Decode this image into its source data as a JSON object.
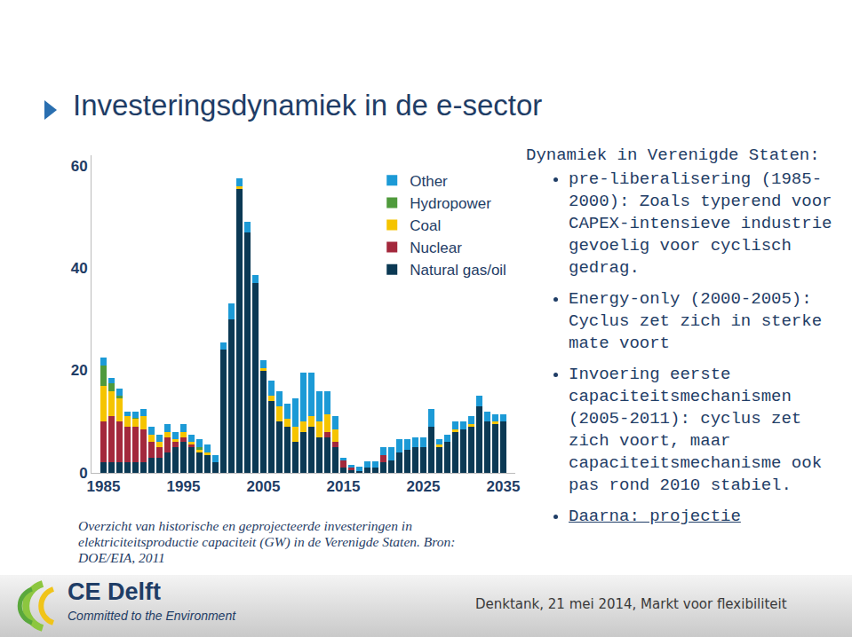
{
  "slide": {
    "title": "Investeringsdynamiek in de e-sector",
    "caption": "Overzicht van historische en geprojecteerde investeringen in elektriciteitsproductie capaciteit (GW) in de Verenigde Staten.",
    "source": "Bron: DOE/EIA, 2011",
    "text": {
      "heading": "Dynamiek in Verenigde Staten:",
      "bullets": [
        "pre-liberalisering (1985-2000): Zoals typerend voor CAPEX-intensieve industrie gevoelig voor cyclisch gedrag.",
        "Energy-only (2000-2005): Cyclus zet zich in sterke mate voort",
        "Invoering eerste capaciteitsmechanismen (2005-2011): cyclus zet zich voort, maar capaciteitsmechanisme ook pas rond 2010 stabiel.",
        "Daarna: projectie"
      ]
    },
    "footer": {
      "logo_name": "CE Delft",
      "logo_tagline": "Committed to the Environment",
      "event": "Denktank, 21 mei 2014, Markt voor flexibiliteit"
    }
  },
  "chart_data": {
    "type": "bar",
    "stacked": true,
    "grid": false,
    "legend": "top right",
    "x": [
      1985,
      1986,
      1987,
      1988,
      1989,
      1990,
      1991,
      1992,
      1993,
      1994,
      1995,
      1996,
      1997,
      1998,
      1999,
      2000,
      2001,
      2002,
      2003,
      2004,
      2005,
      2006,
      2007,
      2008,
      2009,
      2010,
      2011,
      2012,
      2013,
      2014,
      2015,
      2016,
      2017,
      2018,
      2019,
      2020,
      2021,
      2022,
      2023,
      2024,
      2025,
      2026,
      2027,
      2028,
      2029,
      2030,
      2031,
      2032,
      2033,
      2034,
      2035
    ],
    "xlim": [
      1983.5,
      2036.5
    ],
    "xticks": [
      1985,
      1995,
      2005,
      2015,
      2025,
      2035
    ],
    "ylim": [
      0,
      62
    ],
    "yticks": [
      0,
      20,
      40,
      60
    ],
    "series": [
      {
        "name": "Natural gas/oil",
        "color": "#0b3954",
        "values": [
          2,
          2,
          2,
          2,
          2,
          2,
          3,
          3,
          4,
          5,
          6,
          5,
          4,
          3.5,
          2,
          24,
          30,
          55.5,
          47,
          37,
          20,
          14,
          10,
          9,
          6,
          8,
          9,
          7,
          7,
          5,
          1,
          0.5,
          0.3,
          1,
          1,
          2,
          2.5,
          4,
          4.5,
          5,
          5,
          9,
          5,
          6,
          8,
          8.5,
          9,
          13,
          10,
          9.5,
          10
        ]
      },
      {
        "name": "Nuclear",
        "color": "#a3283c",
        "values": [
          8,
          9,
          8,
          7,
          7,
          6.5,
          3,
          2,
          3,
          1,
          1,
          0.5,
          0,
          0,
          0,
          0,
          0,
          0,
          0,
          0,
          0,
          0,
          0,
          0,
          0,
          0,
          0,
          0,
          1,
          1,
          1.5,
          0.5,
          0,
          0,
          0,
          1.5,
          0,
          0,
          0,
          0,
          0,
          0,
          0,
          0,
          0,
          0,
          0,
          0,
          0,
          0,
          0
        ]
      },
      {
        "name": "Coal",
        "color": "#f5c400",
        "values": [
          7,
          5,
          4.5,
          2,
          1.5,
          2.5,
          1.5,
          1,
          1,
          0.5,
          1,
          0.5,
          0.5,
          0.5,
          0,
          0,
          0,
          0.5,
          0,
          0,
          0.5,
          1,
          3,
          1.5,
          3,
          2,
          2,
          3,
          3.5,
          2.5,
          0,
          0,
          0,
          0,
          0,
          0,
          0,
          0,
          0,
          0,
          0,
          0,
          0.5,
          0,
          0.5,
          0,
          0.5,
          0,
          0,
          0.5,
          0
        ]
      },
      {
        "name": "Hydropower",
        "color": "#4f9a3c",
        "values": [
          4,
          1.5,
          0.5,
          0,
          0.3,
          0,
          0,
          0,
          0,
          0,
          0,
          0,
          0.5,
          0,
          0,
          0,
          0,
          0,
          0,
          0,
          0,
          0,
          0,
          0,
          0,
          0,
          0,
          0,
          0,
          0,
          0,
          0,
          0,
          0,
          0,
          0,
          0,
          0,
          0,
          0,
          0,
          0,
          0,
          0,
          0,
          0,
          0,
          0,
          0,
          0,
          0
        ]
      },
      {
        "name": "Other",
        "color": "#1c9ad6",
        "values": [
          1.5,
          1,
          1.5,
          1,
          1.2,
          1.5,
          1.5,
          1.5,
          1.5,
          1.5,
          1.5,
          1.5,
          1.5,
          1.5,
          1.5,
          1.5,
          3,
          1.5,
          2,
          1.6,
          1.5,
          3,
          3,
          3,
          5.5,
          9.5,
          8.5,
          6,
          4.5,
          2.5,
          0.5,
          0.5,
          0.9,
          1.3,
          1.3,
          1.5,
          2.5,
          2.5,
          2,
          2,
          2,
          3.5,
          1,
          1.5,
          1.5,
          1.5,
          1.5,
          2,
          2,
          1.5,
          1.5
        ]
      }
    ]
  }
}
